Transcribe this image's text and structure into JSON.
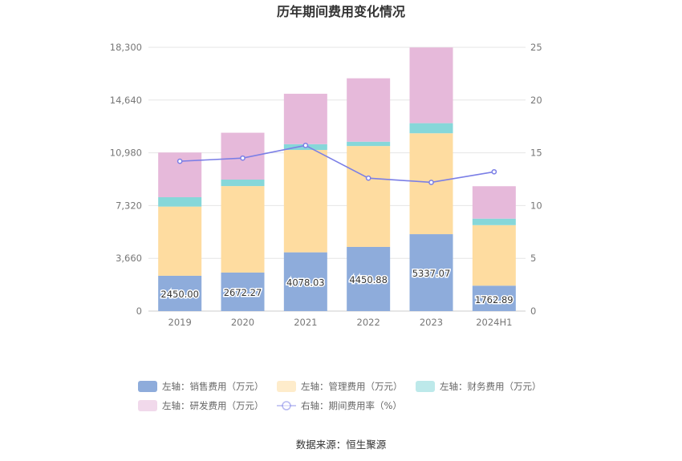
{
  "chart_data": {
    "type": "bar",
    "title": "历年期间费用变化情况",
    "categories": [
      "2019",
      "2020",
      "2021",
      "2022",
      "2023",
      "2024H1"
    ],
    "left_axis": {
      "ticks": [
        "0",
        "3,660",
        "7,320",
        "10,980",
        "14,640",
        "18,300"
      ],
      "ylim": [
        0,
        18300
      ]
    },
    "right_axis": {
      "ticks": [
        "0",
        "5",
        "10",
        "15",
        "20",
        "25"
      ],
      "ylim": [
        0,
        25
      ]
    },
    "bar_series": [
      {
        "name": "左轴：销售费用（万元）",
        "color": "#8eacdb",
        "values": [
          2450.0,
          2672.27,
          4078.03,
          4450.88,
          5337.07,
          1762.89
        ],
        "labels": [
          "2450.00",
          "2672.27",
          "4078.03",
          "4450.88",
          "5337.07",
          "1762.89"
        ]
      },
      {
        "name": "左轴：管理费用（万元）",
        "color": "#fedca0",
        "values": [
          4800,
          6000,
          7100,
          7000,
          7000,
          4200
        ]
      },
      {
        "name": "左轴：财务费用（万元）",
        "color": "#86d7d9",
        "values": [
          650,
          450,
          400,
          300,
          700,
          450
        ]
      },
      {
        "name": "左轴：研发费用（万元）",
        "color": "#e6b9da",
        "values": [
          3100,
          3250,
          3500,
          4400,
          5250,
          2250
        ]
      }
    ],
    "line_series": {
      "name": "右轴：期间费用率（%）",
      "color": "#7b7fe6",
      "values": [
        14.2,
        14.5,
        15.7,
        12.6,
        12.2,
        13.2
      ]
    },
    "grid": true,
    "legend_position": "bottom"
  },
  "source": "数据来源：恒生聚源"
}
